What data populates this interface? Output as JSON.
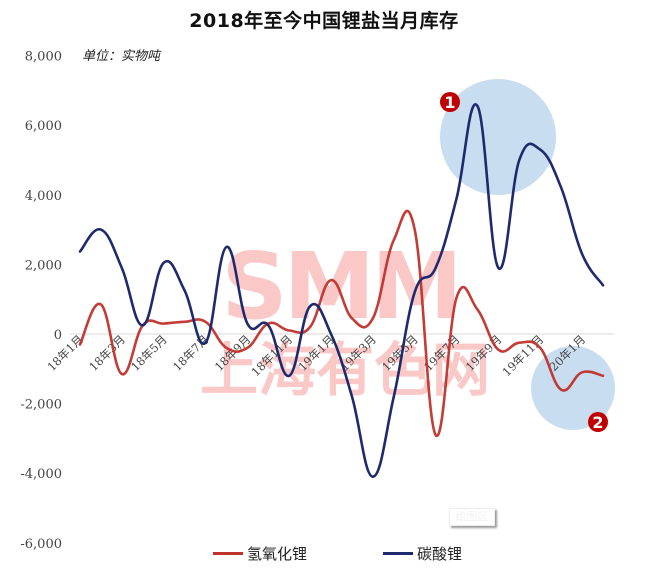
{
  "title": "2018年至今中国锂盐当月库存",
  "unit_label": "单位：实物吨",
  "watermark": {
    "main": "SMM",
    "sub": "上海有色网",
    "color": "#fbc8c8"
  },
  "tooltip": "绘图区",
  "colors": {
    "lithium_hydroxide": "#c0322b",
    "lithium_carbonate": "#1f2a6e",
    "highlight_circle": "#c9ddf0",
    "badge": "#c00000",
    "gridline": "#d9d9d9"
  },
  "legend": [
    {
      "label": "氢氧化锂",
      "color": "#c0322b"
    },
    {
      "label": "碳酸锂",
      "color": "#1f2a6e"
    }
  ],
  "annotations": [
    {
      "number": "1",
      "note": "highlight around carbonate peaks Aug-Nov 2019"
    },
    {
      "number": "2",
      "note": "highlight around hydroxide Dec 2019 - Feb 2020"
    }
  ],
  "chart_data": {
    "type": "line",
    "title": "2018年至今中国锂盐当月库存",
    "xlabel": "",
    "ylabel": "单位：实物吨",
    "ylim": [
      -6000,
      8000
    ],
    "yticks": [
      8000,
      6000,
      4000,
      2000,
      0,
      -2000,
      -4000,
      -6000
    ],
    "ytick_labels": [
      "8,000",
      "6,000",
      "4,000",
      "2,000",
      "0",
      "-2,000",
      "-4,000",
      "-6,000"
    ],
    "grid": false,
    "legend_position": "bottom",
    "x": [
      "18年1月",
      "18年2月",
      "18年3月",
      "18年4月",
      "18年5月",
      "18年6月",
      "18年7月",
      "18年8月",
      "18年9月",
      "18年10月",
      "18年11月",
      "18年12月",
      "19年1月",
      "19年2月",
      "19年3月",
      "19年4月",
      "19年5月",
      "19年6月",
      "19年7月",
      "19年8月",
      "19年9月",
      "19年10月",
      "19年11月",
      "19年12月",
      "20年1月",
      "20年2月"
    ],
    "xtick_labels": [
      "18年1月",
      "18年3月",
      "18年5月",
      "18年7月",
      "18年9月",
      "18年11月",
      "19年1月",
      "19年3月",
      "19年5月",
      "19年7月",
      "19年9月",
      "19年11月",
      "20年1月"
    ],
    "series": [
      {
        "name": "氢氧化锂",
        "color": "#c0322b",
        "values": [
          -300,
          850,
          -1150,
          250,
          300,
          350,
          350,
          -400,
          -400,
          300,
          100,
          200,
          1550,
          450,
          450,
          2700,
          3000,
          -2900,
          1050,
          700,
          -450,
          -250,
          -400,
          -1600,
          -1100,
          -1200
        ]
      },
      {
        "name": "碳酸锂",
        "color": "#1f2a6e",
        "values": [
          2370,
          3000,
          1900,
          250,
          2050,
          1250,
          -250,
          2500,
          300,
          250,
          -1200,
          800,
          0,
          -1800,
          -4100,
          -1800,
          1200,
          1900,
          3900,
          6550,
          1900,
          5000,
          5300,
          4200,
          2300,
          1400
        ]
      }
    ]
  }
}
